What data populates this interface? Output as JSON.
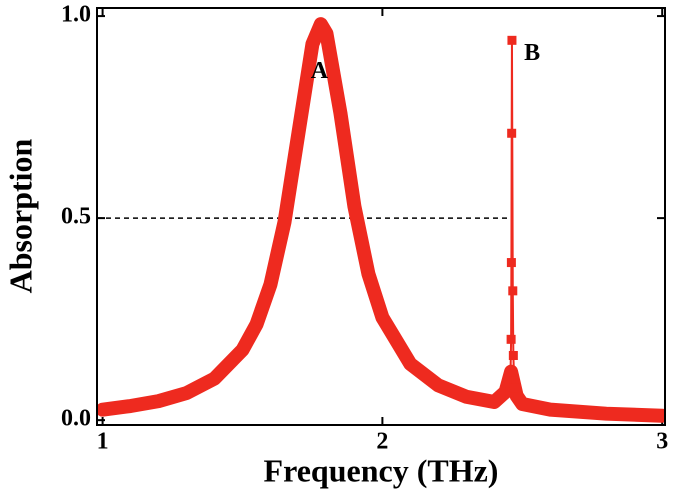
{
  "chart_data": {
    "type": "line",
    "xlabel": "Frequency (THz)",
    "ylabel": "Absorption",
    "xlim": [
      0.98,
      3.01
    ],
    "ylim": [
      -0.012,
      1.02
    ],
    "xticks": [
      1,
      2,
      3
    ],
    "yticks": [
      {
        "value": 0,
        "label": "0.0"
      },
      {
        "value": 0.5,
        "label": "0.5"
      },
      {
        "value": 1,
        "label": "1.0"
      }
    ],
    "series": [
      {
        "color": "#ee2a1f",
        "line_width": 14,
        "x": [
          1.0,
          1.1,
          1.2,
          1.3,
          1.4,
          1.5,
          1.55,
          1.6,
          1.65,
          1.7,
          1.75,
          1.78,
          1.8,
          1.85,
          1.9,
          1.95,
          2.0,
          2.1,
          2.2,
          2.3,
          2.4,
          2.44,
          2.46,
          2.48,
          2.5,
          2.6,
          2.8,
          3.0
        ],
        "values": [
          0.026,
          0.035,
          0.047,
          0.067,
          0.103,
          0.174,
          0.237,
          0.336,
          0.49,
          0.711,
          0.931,
          0.98,
          0.957,
          0.76,
          0.529,
          0.362,
          0.254,
          0.139,
          0.086,
          0.058,
          0.045,
          0.07,
          0.12,
          0.06,
          0.04,
          0.026,
          0.016,
          0.011
        ]
      },
      {
        "color": "#ee2a1f",
        "line_width": 2,
        "marker": "square",
        "x": [
          2.455,
          2.458,
          2.46,
          2.461,
          2.462,
          2.463,
          2.466,
          2.468,
          2.472
        ],
        "values": [
          0.07,
          0.12,
          0.2,
          0.39,
          0.71,
          0.94,
          0.32,
          0.16,
          0.08
        ]
      }
    ],
    "hline": {
      "y": 0.5,
      "xmax": 2.45,
      "style": "dashed"
    },
    "annotations": [
      {
        "text": "A",
        "x": 1.775,
        "y": 0.86
      },
      {
        "text": "B",
        "x": 2.535,
        "y": 0.905
      }
    ]
  }
}
